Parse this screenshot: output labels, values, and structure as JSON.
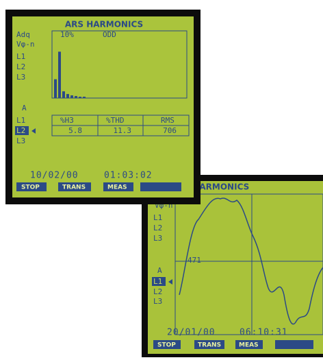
{
  "screen2": {
    "title": "ARS HARMONICS",
    "voltage_label": "Vφ-n",
    "voltage_phases": [
      "L1",
      "L2",
      "L3"
    ],
    "scale_value": "471",
    "current_label": "A",
    "current_phases": [
      "L1",
      "L2",
      "L3"
    ],
    "date": "20/01/00",
    "time": "06:10:31",
    "buttons": [
      "STOP",
      "TRANS",
      "MEAS"
    ]
  },
  "screen1": {
    "title": "ARS HARMONICS",
    "mode": "Adq",
    "voltage_label": "Vφ-n",
    "scale": "10%",
    "filter": "ODD",
    "voltage_phases": [
      "L1",
      "L2",
      "L3"
    ],
    "current_label": "A",
    "current_phases": [
      "L1",
      "L2",
      "L3"
    ],
    "harmonic_bars": [
      28,
      69,
      10,
      6,
      4,
      3,
      2,
      2
    ],
    "table": {
      "headers": [
        "%H3",
        "%THD",
        "RMS"
      ],
      "row": [
        "5.8",
        "11.3",
        "706"
      ]
    },
    "date": "10/02/00",
    "time": "01:03:02",
    "buttons": [
      "STOP",
      "TRANS",
      "MEAS"
    ]
  }
}
